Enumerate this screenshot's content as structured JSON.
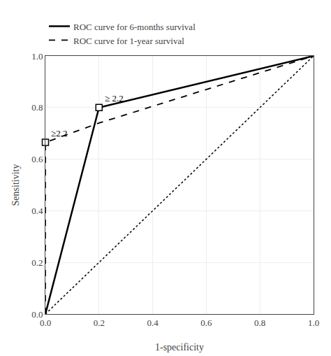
{
  "chart_data": {
    "type": "line",
    "xlabel": "1-specificity",
    "ylabel": "Sensitivity",
    "series": [
      {
        "name": "ROC curve for 6-months survival",
        "x": [
          0.0,
          0.2,
          1.0
        ],
        "values": [
          0.0,
          0.8,
          1.0
        ],
        "color": "#000000",
        "line_style": "solid"
      },
      {
        "name": "ROC curve for 1-year survival",
        "x": [
          0.0,
          0.0,
          0.2,
          1.0
        ],
        "values": [
          0.0,
          0.665,
          0.74,
          1.0
        ],
        "color": "#000000",
        "line_style": "dashed"
      },
      {
        "x": [
          0.0,
          1.0
        ],
        "values": [
          0.0,
          1.0
        ],
        "color": "#000000",
        "line_style": "dotted"
      },
      {
        "type": "scatter",
        "marker": "square",
        "x": [
          0.2,
          0.0
        ],
        "values": [
          0.8,
          0.665
        ],
        "color": "#000000"
      }
    ],
    "annotations": [
      {
        "text": "≥ 2.2",
        "x": 0.2,
        "y": 0.8
      },
      {
        "text": "≥2.2",
        "x": 0.0,
        "y": 0.665
      }
    ],
    "xlim": [
      0.0,
      1.0
    ],
    "ylim": [
      0.0,
      1.0
    ],
    "xticks": [
      {
        "value": 0,
        "label": "0.0"
      },
      {
        "value": 0.2,
        "label": "0.2"
      },
      {
        "value": 0.4,
        "label": "0.4"
      },
      {
        "value": 0.6,
        "label": "0.6"
      },
      {
        "value": 0.8,
        "label": "0.8"
      },
      {
        "value": 1,
        "label": "1.0"
      }
    ],
    "yticks": [
      {
        "value": 0,
        "label": "0.0"
      },
      {
        "value": 0.2,
        "label": "0.2"
      },
      {
        "value": 0.4,
        "label": "0.4"
      },
      {
        "value": 0.6,
        "label": "0.6"
      },
      {
        "value": 0.8,
        "label": "0.8"
      },
      {
        "value": 1,
        "label": "1.0"
      }
    ],
    "grid": true,
    "legend": "upper left"
  }
}
